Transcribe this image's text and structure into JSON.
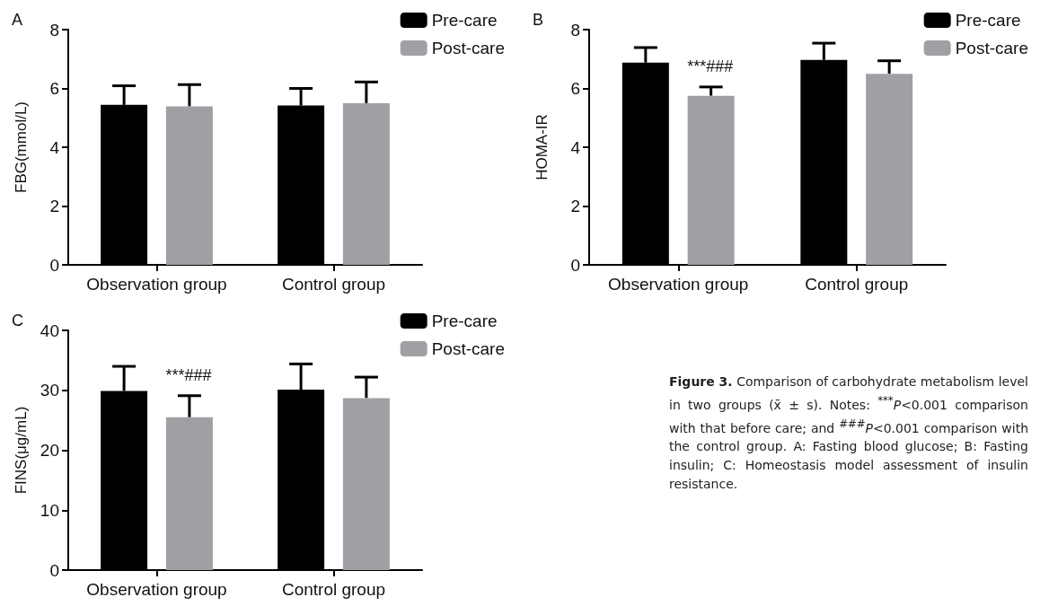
{
  "chart_data": [
    {
      "type": "bar",
      "title": "A",
      "ylabel": "FBG(mmol/L)",
      "categories": [
        "Observation group",
        "Control group"
      ],
      "ylim": [
        0,
        8
      ],
      "yticks": [
        0,
        2,
        4,
        6,
        8
      ],
      "grid": false,
      "legend": "top right",
      "series": [
        {
          "name": "Pre-care",
          "color": "#000000",
          "values": [
            5.44,
            5.42
          ],
          "errors": [
            [
              5.44,
              6.09
            ],
            [
              5.42,
              6.0
            ]
          ]
        },
        {
          "name": "Post-care",
          "color": "#a0a0a4",
          "values": [
            5.39,
            5.5
          ],
          "errors": [
            [
              5.39,
              6.13
            ],
            [
              5.5,
              6.22
            ]
          ]
        }
      ]
    },
    {
      "type": "bar",
      "title": "B",
      "ylabel": "HOMA-IR",
      "categories": [
        "Observation group",
        "Control group"
      ],
      "ylim": [
        0,
        8
      ],
      "yticks": [
        0,
        2,
        4,
        6,
        8
      ],
      "grid": false,
      "legend": "top right",
      "annotations": [
        "***###"
      ],
      "series": [
        {
          "name": "Pre-care",
          "color": "#000000",
          "values": [
            6.88,
            6.97
          ],
          "errors": [
            [
              6.88,
              7.39
            ],
            [
              6.97,
              7.54
            ]
          ]
        },
        {
          "name": "Post-care",
          "color": "#a0a0a4",
          "values": [
            5.75,
            6.5
          ],
          "errors": [
            [
              5.75,
              6.05
            ],
            [
              6.5,
              6.94
            ]
          ]
        }
      ]
    },
    {
      "type": "bar",
      "title": "C",
      "ylabel": "FINS(μg/mL)",
      "categories": [
        "Observation group",
        "Control group"
      ],
      "ylim": [
        0,
        40
      ],
      "yticks": [
        0,
        10,
        20,
        30,
        40
      ],
      "grid": false,
      "legend": "top right",
      "annotations": [
        "***###"
      ],
      "series": [
        {
          "name": "Pre-care",
          "color": "#000000",
          "values": [
            29.9,
            30.1
          ],
          "errors": [
            [
              29.9,
              34.0
            ],
            [
              30.1,
              34.4
            ]
          ]
        },
        {
          "name": "Post-care",
          "color": "#a0a0a4",
          "values": [
            25.5,
            28.7
          ],
          "errors": [
            [
              25.5,
              29.1
            ],
            [
              28.7,
              32.2
            ]
          ]
        }
      ]
    },
    {
      "type": "other",
      "title": "Figure 3.",
      "annotations": [
        "Comparison of carbohydrate metabolism level in two groups (x̄ ± s). Notes: $^{***}$P<0.001 comparison with that before care; and $^{###}$P<0.001 comparison with the control group. A: Fasting blood glucose; B: Fasting insulin; C: Homeostasis model assessment of insulin resistance."
      ]
    }
  ]
}
